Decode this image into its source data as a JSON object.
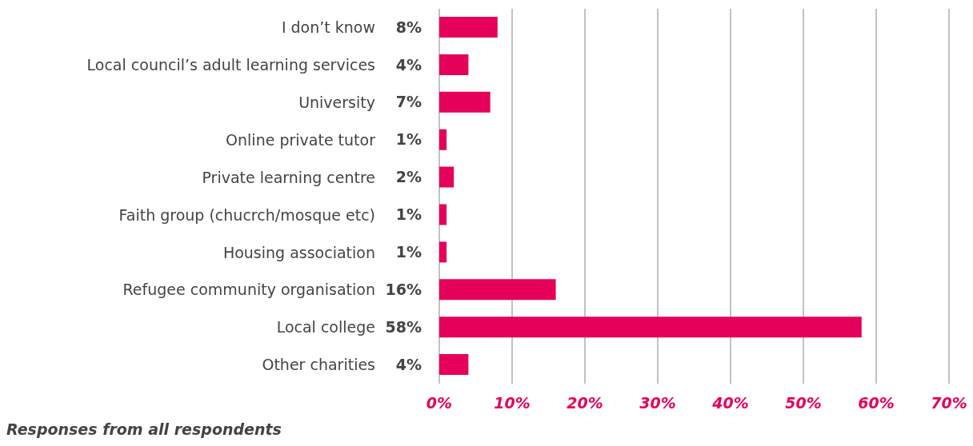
{
  "chart_data": {
    "type": "bar",
    "orientation": "horizontal",
    "categories": [
      "I don’t know",
      "Local council’s adult learning services",
      "University",
      "Online private tutor",
      "Private learning centre",
      "Faith group (chucrch/mosque etc)",
      "Housing association",
      "Refugee community organisation",
      "Local college",
      "Other charities"
    ],
    "values": [
      8,
      4,
      7,
      1,
      2,
      1,
      1,
      16,
      58,
      4
    ],
    "value_labels": [
      "8%",
      "4%",
      "7%",
      "1%",
      "2%",
      "1%",
      "1%",
      "16%",
      "58%",
      "4%"
    ],
    "color": "#e5005a",
    "xlim": [
      0,
      70
    ],
    "xticks": [
      {
        "value": 0,
        "label": "0%"
      },
      {
        "value": 10,
        "label": "10%"
      },
      {
        "value": 20,
        "label": "20%"
      },
      {
        "value": 30,
        "label": "30%"
      },
      {
        "value": 40,
        "label": "40%"
      },
      {
        "value": 50,
        "label": "50%"
      },
      {
        "value": 60,
        "label": "60%"
      },
      {
        "value": 70,
        "label": "70%"
      }
    ],
    "grid": "x",
    "annotations": [
      "Responses from all respondents"
    ]
  }
}
